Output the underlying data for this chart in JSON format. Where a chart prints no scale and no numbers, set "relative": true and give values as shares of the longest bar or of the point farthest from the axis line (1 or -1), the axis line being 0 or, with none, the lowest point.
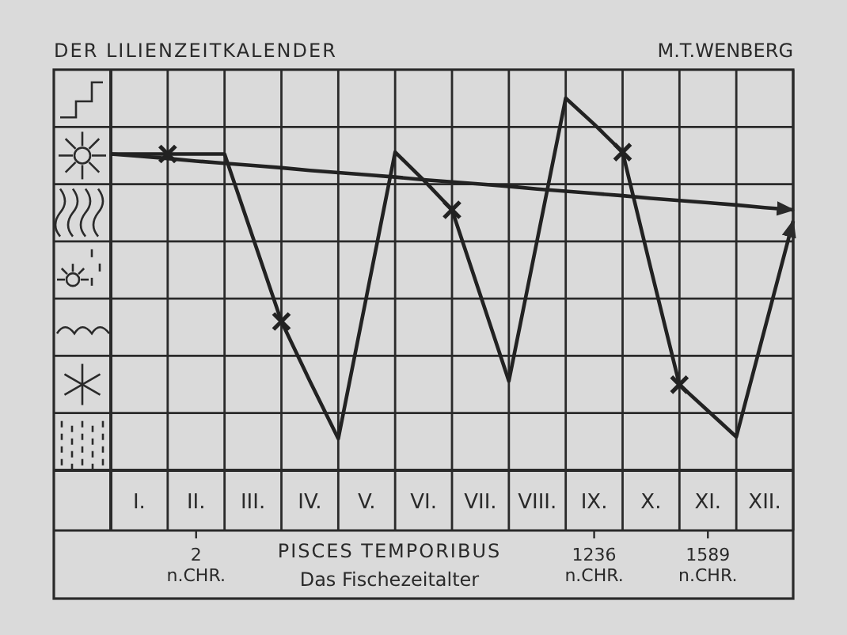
{
  "chart_data": {
    "type": "line",
    "title": "DER LILIENZEITKALENDER",
    "subtitle": "M.T.WENBERG",
    "xlabel": "PISCES TEMPORIBUS",
    "relative": true,
    "grid": true,
    "categories": [
      null,
      "I.",
      null,
      "II.",
      null,
      "III.",
      null,
      "IV.",
      null,
      "V.",
      null,
      "VI.",
      null,
      "VII.",
      null,
      "VIII.",
      null,
      "IX.",
      null,
      "X.",
      null,
      "XI.",
      null,
      "XII.",
      null
    ],
    "series": [
      {
        "color": "#222222",
        "marker": "none",
        "values": [
          0.85,
          0.85,
          0.85,
          0.85,
          0.85,
          0.625,
          0.4,
          0.24,
          0.085,
          0.47,
          0.855,
          0.78,
          0.7,
          0.47,
          0.24,
          0.62,
          1,
          0.93,
          0.855,
          0.54,
          0.23,
          0.16,
          0.09,
          0.38,
          0.67
        ]
      },
      {
        "type": "scatter",
        "color": "#222222",
        "marker": "cross",
        "values": [
          null,
          null,
          0.85,
          null,
          null,
          null,
          0.4,
          null,
          null,
          null,
          null,
          null,
          0.7,
          null,
          null,
          null,
          null,
          null,
          0.855,
          null,
          0.23,
          null,
          null,
          null,
          null
        ]
      },
      {
        "type": "line",
        "color": "#222222",
        "marker": "none",
        "values": [
          0.85,
          0.844,
          0.838,
          0.831,
          0.825,
          0.819,
          0.813,
          0.806,
          0.8,
          0.794,
          0.788,
          0.781,
          0.775,
          0.769,
          0.763,
          0.756,
          0.75,
          0.744,
          0.738,
          0.731,
          0.725,
          0.719,
          0.713,
          0.706,
          0.7
        ]
      }
    ],
    "annotations": [
      "2 n.CHR.",
      "1236 n.CHR.",
      "1589 n.CHR.",
      "Das Fischezeitalter"
    ]
  }
}
